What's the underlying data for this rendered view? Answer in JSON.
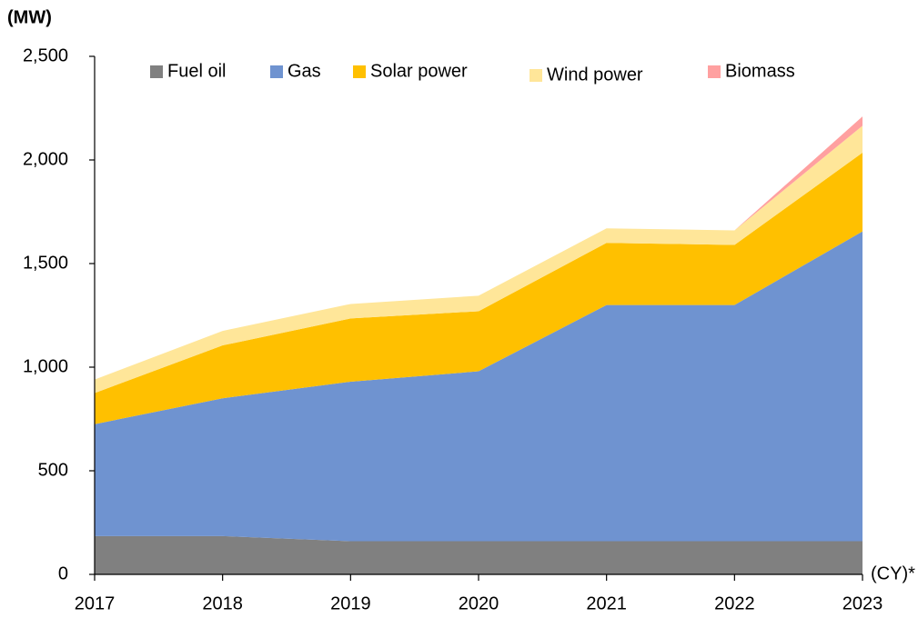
{
  "chart_data": {
    "type": "stacked_area",
    "y_label": "(MW)",
    "x_label": "(CY)*",
    "categories": [
      "2017",
      "2018",
      "2019",
      "2020",
      "2021",
      "2022",
      "2023"
    ],
    "series": [
      {
        "name": "Fuel oil",
        "color": "#808080",
        "values": [
          185,
          185,
          160,
          160,
          160,
          160,
          160
        ]
      },
      {
        "name": "Gas",
        "color": "#6f93d0",
        "values": [
          540,
          665,
          770,
          820,
          1140,
          1140,
          1495
        ]
      },
      {
        "name": "Solar power",
        "color": "#ffc000",
        "values": [
          150,
          255,
          305,
          290,
          300,
          290,
          380
        ]
      },
      {
        "name": "Wind power",
        "color": "#ffe699",
        "values": [
          65,
          70,
          70,
          75,
          70,
          70,
          130
        ]
      },
      {
        "name": "Biomass",
        "color": "#ffa0a0",
        "values": [
          0,
          0,
          0,
          0,
          0,
          0,
          45
        ]
      }
    ],
    "ylim": [
      0,
      2500
    ],
    "yticks": [
      0,
      500,
      {
        "value": 1000,
        "label": "1,000"
      },
      {
        "value": 1500,
        "label": "1,500"
      },
      {
        "value": 2000,
        "label": "2,000"
      },
      {
        "value": 2500,
        "label": "2,500"
      }
    ],
    "legend": "top"
  }
}
